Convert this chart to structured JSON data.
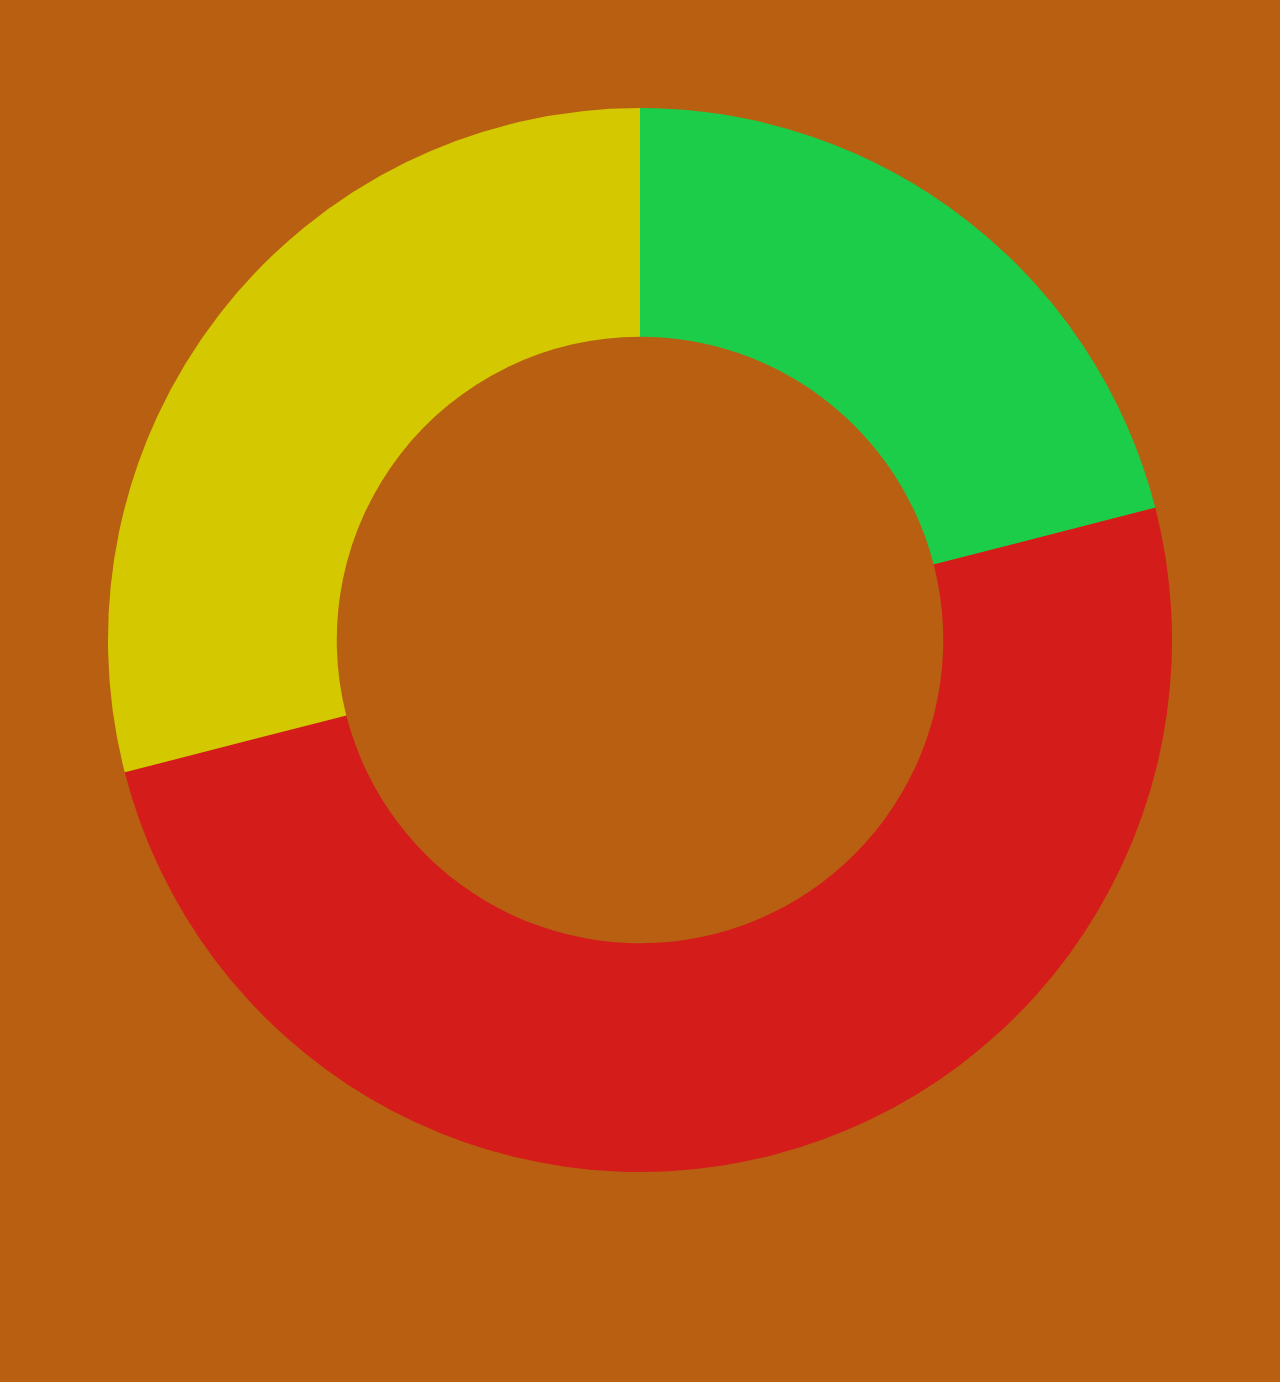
{
  "chart_data": {
    "type": "donut",
    "categories": [
      null,
      null,
      null
    ],
    "values": [
      21,
      50,
      29
    ],
    "colors": [
      "#1ccd4a",
      "#d41c1a",
      "#d4c800"
    ]
  }
}
